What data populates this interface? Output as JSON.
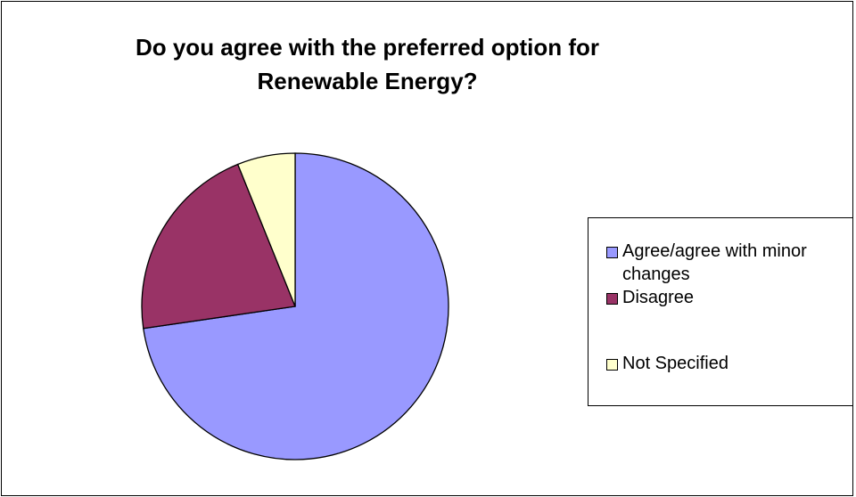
{
  "chart_data": {
    "type": "pie",
    "title": "Do you agree with the preferred option for Renewable Energy?",
    "title_lines": [
      "Do you agree with the preferred option for",
      "Renewable Energy?"
    ],
    "categories": [
      "Agree/agree with minor changes",
      "Disagree",
      "Not Specified"
    ],
    "values": [
      72.7,
      21.2,
      6.1
    ],
    "unit": "percent (estimated)",
    "colors": [
      "#9999ff",
      "#993366",
      "#ffffcc"
    ],
    "start_angle_deg": 0,
    "direction": "clockwise from 12 o'clock",
    "legend_position": "right",
    "legend_labels": [
      "Agree/agree with minor",
      "changes",
      "Disagree",
      "Not Specified"
    ]
  }
}
